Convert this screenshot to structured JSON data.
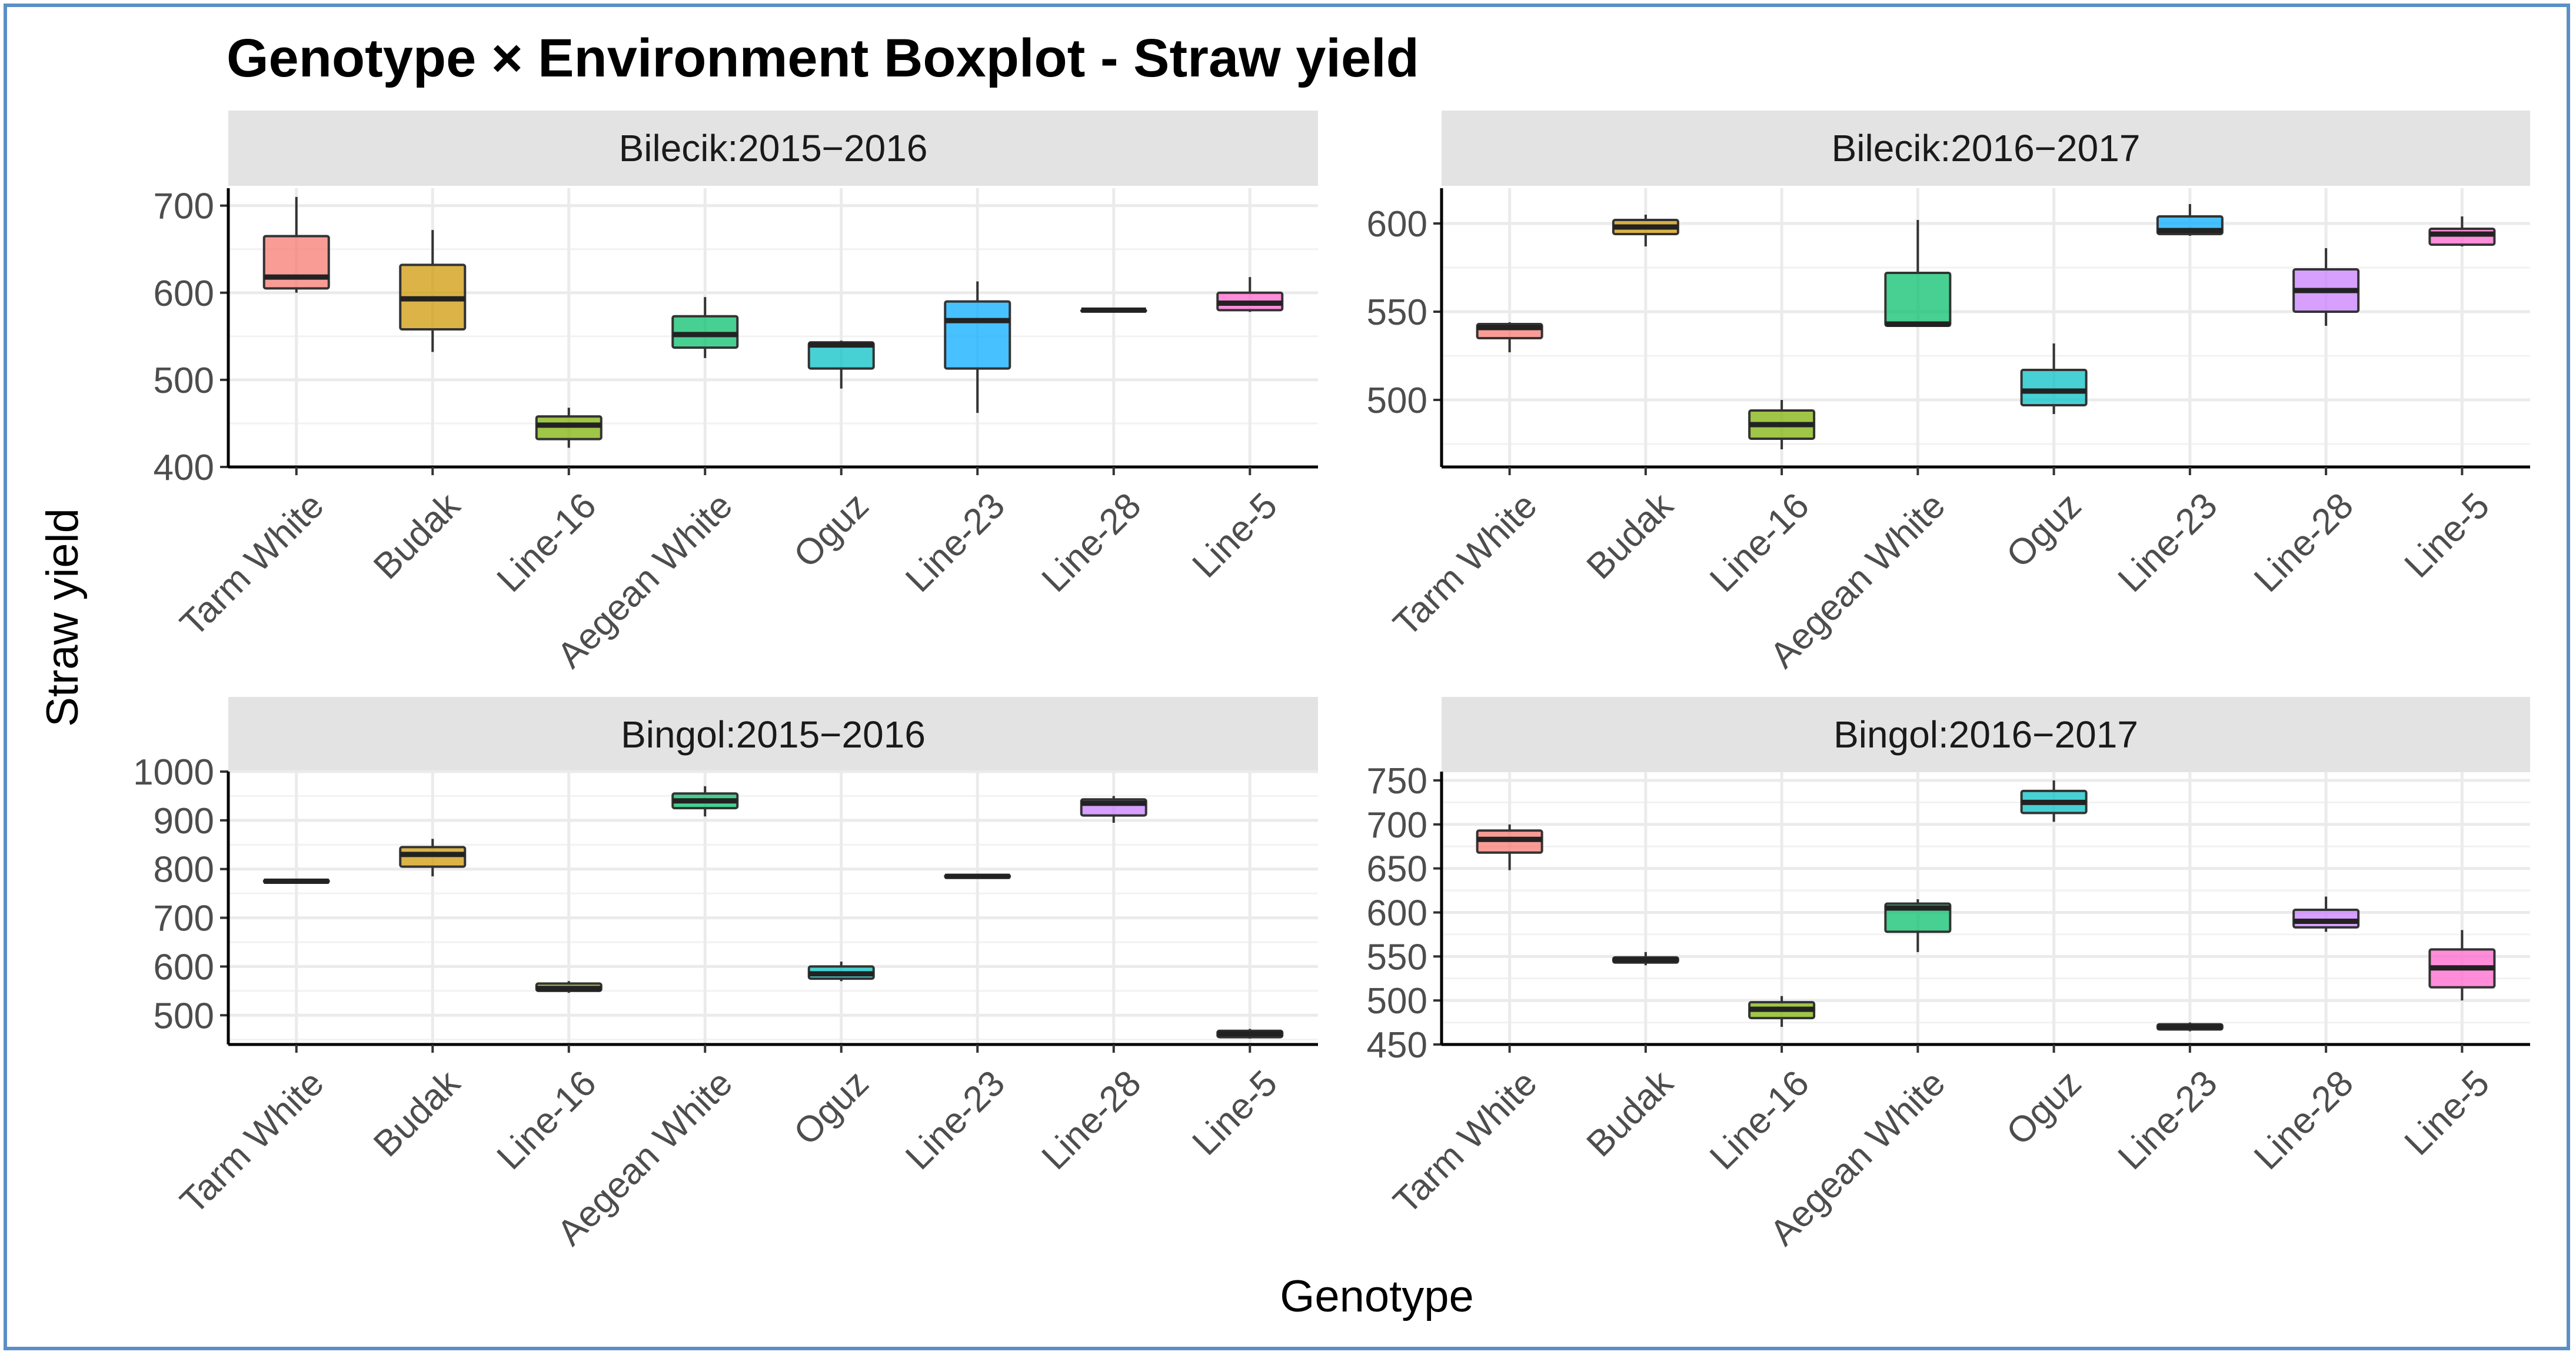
{
  "chart_data": {
    "type": "boxplot",
    "title": "Genotype × Environment Boxplot - Straw yield",
    "xlabel": "Genotype",
    "ylabel": "Straw yield",
    "categories": [
      "Tarm White",
      "Budak",
      "Line-16",
      "Aegean White",
      "Oguz",
      "Line-23",
      "Line-28",
      "Line-5"
    ],
    "colors": {
      "Tarm White": "#f8766d",
      "Budak": "#cd9600",
      "Line-16": "#7cae00",
      "Aegean White": "#00be67",
      "Oguz": "#00bfc4",
      "Line-23": "#00a9ff",
      "Line-28": "#c77cff",
      "Line-5": "#ff61cc"
    },
    "panels": [
      {
        "strip": "Bilecik:2015−2016",
        "ylim": [
          400,
          720
        ],
        "yticks": [
          400,
          500,
          600,
          700
        ],
        "boxes": [
          {
            "genotype": "Tarm White",
            "min": 600,
            "q1": 605,
            "median": 618,
            "q3": 665,
            "max": 710
          },
          {
            "genotype": "Budak",
            "min": 532,
            "q1": 558,
            "median": 593,
            "q3": 632,
            "max": 672
          },
          {
            "genotype": "Line-16",
            "min": 422,
            "q1": 432,
            "median": 448,
            "q3": 458,
            "max": 468
          },
          {
            "genotype": "Aegean White",
            "min": 525,
            "q1": 537,
            "median": 552,
            "q3": 573,
            "max": 595
          },
          {
            "genotype": "Oguz",
            "min": 490,
            "q1": 513,
            "median": 540,
            "q3": 543,
            "max": 545
          },
          {
            "genotype": "Line-23",
            "min": 462,
            "q1": 513,
            "median": 568,
            "q3": 590,
            "max": 613
          },
          {
            "genotype": "Line-28",
            "min": 580,
            "q1": 580,
            "median": 580,
            "q3": 580,
            "max": 580
          },
          {
            "genotype": "Line-5",
            "min": 578,
            "q1": 580,
            "median": 588,
            "q3": 600,
            "max": 618
          }
        ]
      },
      {
        "strip": "Bilecik:2016−2017",
        "ylim": [
          462,
          620
        ],
        "yticks": [
          500,
          550,
          600
        ],
        "boxes": [
          {
            "genotype": "Tarm White",
            "min": 527,
            "q1": 535,
            "median": 541,
            "q3": 543,
            "max": 544
          },
          {
            "genotype": "Budak",
            "min": 587,
            "q1": 594,
            "median": 598,
            "q3": 602,
            "max": 605
          },
          {
            "genotype": "Line-16",
            "min": 472,
            "q1": 478,
            "median": 486,
            "q3": 494,
            "max": 500
          },
          {
            "genotype": "Aegean White",
            "min": 542,
            "q1": 542,
            "median": 543,
            "q3": 572,
            "max": 602
          },
          {
            "genotype": "Oguz",
            "min": 492,
            "q1": 497,
            "median": 505,
            "q3": 517,
            "max": 532
          },
          {
            "genotype": "Line-23",
            "min": 593,
            "q1": 594,
            "median": 596,
            "q3": 604,
            "max": 611
          },
          {
            "genotype": "Line-28",
            "min": 542,
            "q1": 550,
            "median": 562,
            "q3": 574,
            "max": 586
          },
          {
            "genotype": "Line-5",
            "min": 587,
            "q1": 588,
            "median": 594,
            "q3": 597,
            "max": 604
          }
        ]
      },
      {
        "strip": "Bingol:2015−2016",
        "ylim": [
          440,
          1000
        ],
        "yticks": [
          500,
          600,
          700,
          800,
          900,
          1000
        ],
        "boxes": [
          {
            "genotype": "Tarm White",
            "min": 770,
            "q1": 772,
            "median": 775,
            "q3": 778,
            "max": 780
          },
          {
            "genotype": "Budak",
            "min": 785,
            "q1": 805,
            "median": 830,
            "q3": 845,
            "max": 862
          },
          {
            "genotype": "Line-16",
            "min": 546,
            "q1": 550,
            "median": 555,
            "q3": 565,
            "max": 570
          },
          {
            "genotype": "Aegean White",
            "min": 908,
            "q1": 925,
            "median": 940,
            "q3": 955,
            "max": 970
          },
          {
            "genotype": "Oguz",
            "min": 570,
            "q1": 575,
            "median": 585,
            "q3": 600,
            "max": 610
          },
          {
            "genotype": "Line-23",
            "min": 780,
            "q1": 782,
            "median": 785,
            "q3": 788,
            "max": 790
          },
          {
            "genotype": "Line-28",
            "min": 895,
            "q1": 910,
            "median": 935,
            "q3": 943,
            "max": 950
          },
          {
            "genotype": "Line-5",
            "min": 452,
            "q1": 455,
            "median": 462,
            "q3": 468,
            "max": 472
          }
        ]
      },
      {
        "strip": "Bingol:2016−2017",
        "ylim": [
          450,
          760
        ],
        "yticks": [
          450,
          500,
          550,
          600,
          650,
          700,
          750
        ],
        "boxes": [
          {
            "genotype": "Tarm White",
            "min": 648,
            "q1": 668,
            "median": 683,
            "q3": 693,
            "max": 700
          },
          {
            "genotype": "Budak",
            "min": 540,
            "q1": 543,
            "median": 546,
            "q3": 549,
            "max": 555
          },
          {
            "genotype": "Line-16",
            "min": 470,
            "q1": 480,
            "median": 490,
            "q3": 498,
            "max": 505
          },
          {
            "genotype": "Aegean White",
            "min": 555,
            "q1": 578,
            "median": 605,
            "q3": 610,
            "max": 615
          },
          {
            "genotype": "Oguz",
            "min": 703,
            "q1": 713,
            "median": 725,
            "q3": 738,
            "max": 750
          },
          {
            "genotype": "Line-23",
            "min": 465,
            "q1": 467,
            "median": 470,
            "q3": 473,
            "max": 475
          },
          {
            "genotype": "Line-28",
            "min": 578,
            "q1": 583,
            "median": 590,
            "q3": 603,
            "max": 618
          },
          {
            "genotype": "Line-5",
            "min": 500,
            "q1": 515,
            "median": 537,
            "q3": 558,
            "max": 580
          }
        ]
      }
    ]
  }
}
